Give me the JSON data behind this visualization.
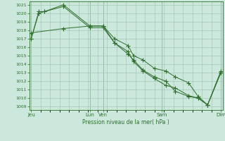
{
  "background_color": "#cce8dc",
  "plot_bg_color": "#cce8dc",
  "line_color": "#2d6e2d",
  "grid_color": "#9dbfb0",
  "text_color": "#2d6e2d",
  "xlabel": "Pression niveau de la mer( hPa )",
  "ylim": [
    1009,
    1021
  ],
  "yticks": [
    1009,
    1010,
    1011,
    1012,
    1013,
    1014,
    1015,
    1016,
    1017,
    1018,
    1019,
    1020,
    1021
  ],
  "xtick_positions": [
    0.0,
    0.31,
    0.38,
    0.69,
    1.0
  ],
  "xtick_labels": [
    "Jeu",
    "Lun",
    "Ven",
    "Sam",
    "Dim"
  ],
  "vline_positions": [
    0.0,
    0.31,
    0.38,
    0.69,
    1.0
  ],
  "line1_x": [
    0.0,
    0.04,
    0.07,
    0.17,
    0.31,
    0.38,
    0.44,
    0.51,
    0.54,
    0.59,
    0.65,
    0.71,
    0.76,
    0.83,
    0.88,
    0.93,
    1.0
  ],
  "line1_y": [
    1017.0,
    1020.0,
    1020.2,
    1021.0,
    1018.5,
    1018.5,
    1017.0,
    1016.2,
    1015.0,
    1014.5,
    1013.5,
    1013.2,
    1012.5,
    1011.8,
    1010.2,
    1009.2,
    1013.0
  ],
  "line2_x": [
    0.0,
    0.04,
    0.07,
    0.17,
    0.31,
    0.38,
    0.44,
    0.51,
    0.54,
    0.59,
    0.65,
    0.71,
    0.76,
    0.83,
    0.88,
    0.93,
    1.0
  ],
  "line2_y": [
    1017.0,
    1020.2,
    1020.2,
    1020.8,
    1018.3,
    1018.3,
    1016.5,
    1015.2,
    1014.5,
    1013.3,
    1012.5,
    1012.0,
    1010.8,
    1010.2,
    1010.0,
    1009.2,
    1013.0
  ],
  "line3_x": [
    0.0,
    0.17,
    0.31,
    0.38,
    0.44,
    0.51,
    0.54,
    0.59,
    0.65,
    0.71,
    0.76,
    0.83,
    0.88,
    0.93,
    1.0
  ],
  "line3_y": [
    1017.7,
    1018.2,
    1018.5,
    1018.5,
    1016.5,
    1015.5,
    1014.3,
    1013.2,
    1012.3,
    1011.5,
    1011.2,
    1010.3,
    1010.0,
    1009.2,
    1013.2
  ]
}
